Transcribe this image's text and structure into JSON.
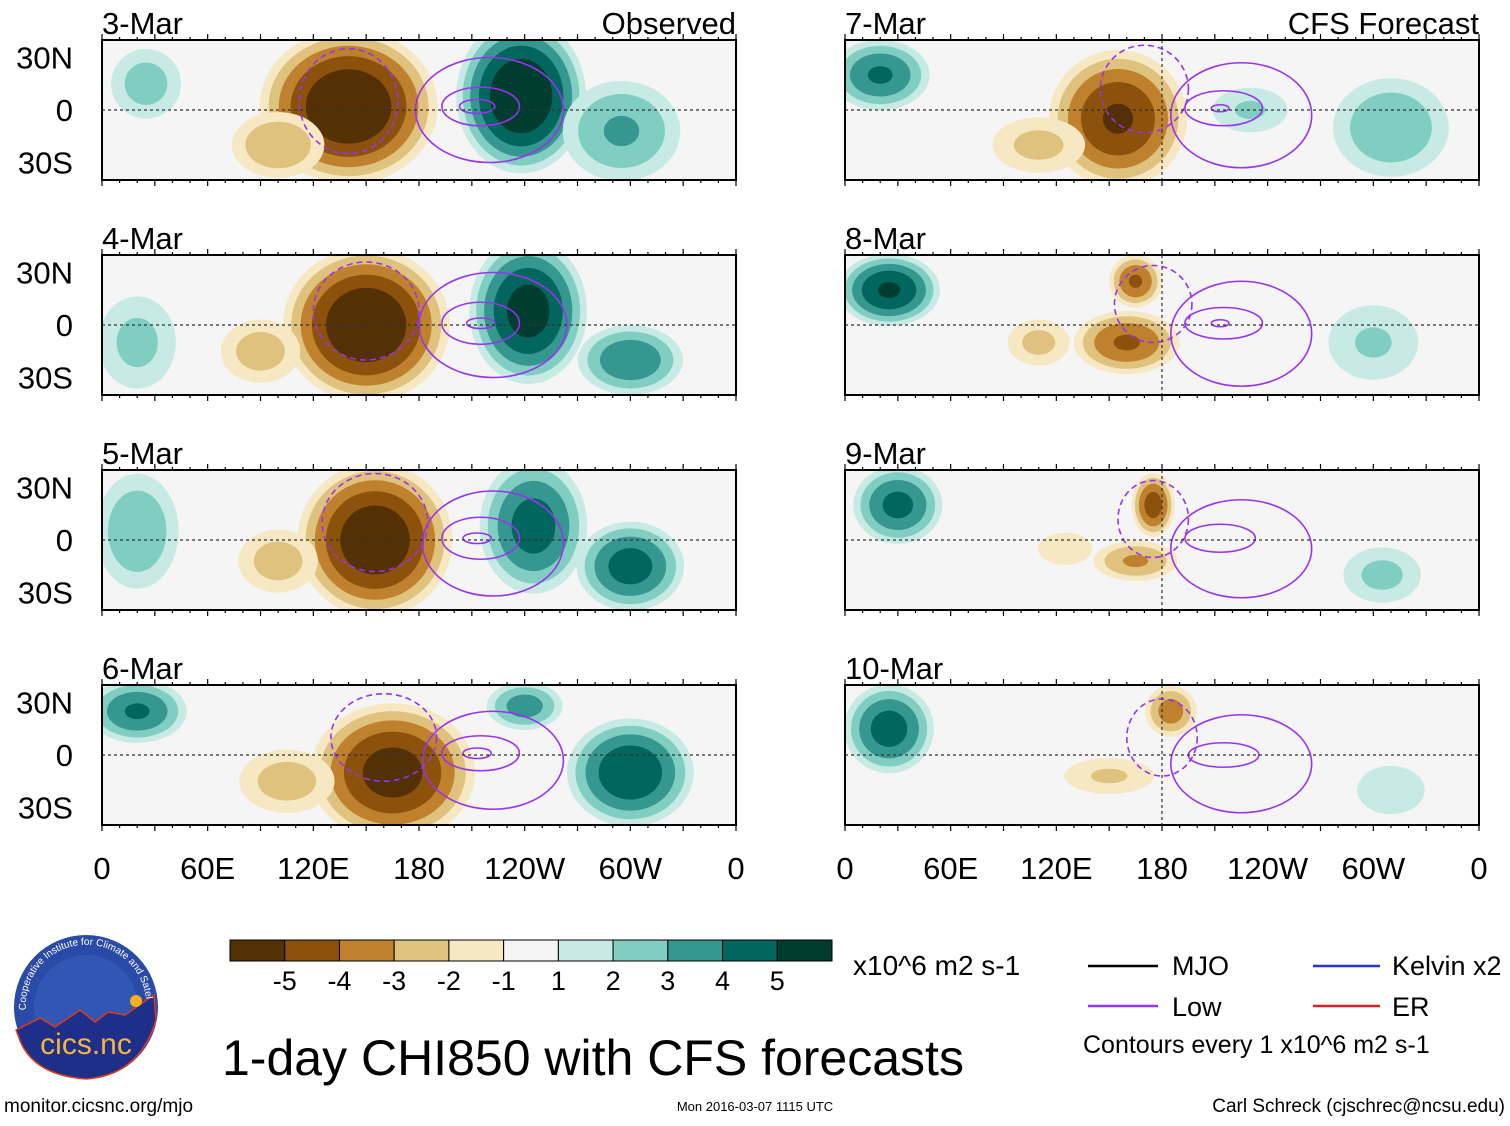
{
  "chart_data": {
    "type": "heatmap",
    "title": "1-day CHI850 with CFS forecasts",
    "units": "x10^6 m2 s-1",
    "x_ticks": [
      "0",
      "60E",
      "120E",
      "180",
      "120W",
      "60W",
      "0"
    ],
    "y_ticks": [
      "30N",
      "0",
      "30S"
    ],
    "lon_range": [
      0,
      360
    ],
    "lat_range": [
      -40,
      40
    ],
    "color_levels": [
      -5,
      -4,
      -3,
      -2,
      -1,
      1,
      2,
      3,
      4,
      5
    ],
    "color_level_labels": [
      "-5",
      "-4",
      "-3",
      "-2",
      "-1",
      "1",
      "2",
      "3",
      "4",
      "5"
    ],
    "colors": [
      "#543005",
      "#8c510a",
      "#bf812d",
      "#dfc27d",
      "#f6e8c3",
      "#f5f5f5",
      "#c7eae5",
      "#80cdc1",
      "#35978f",
      "#01665e",
      "#003c30"
    ],
    "column_headers": {
      "left": "Observed",
      "right": "CFS Forecast"
    },
    "panels": [
      {
        "date": "3-Mar",
        "column": "observed",
        "anomalies": [
          {
            "lon": 25,
            "lat": 15,
            "amp": 2.6,
            "rlon": 22,
            "rlat": 22
          },
          {
            "lon": 140,
            "lat": 2,
            "amp": -6.2,
            "rlon": 48,
            "rlat": 42
          },
          {
            "lon": 100,
            "lat": -20,
            "amp": -3,
            "rlon": 28,
            "rlat": 20
          },
          {
            "lon": 238,
            "lat": 8,
            "amp": 6.2,
            "rlon": 35,
            "rlat": 42
          },
          {
            "lon": 295,
            "lat": -12,
            "amp": 3.2,
            "rlon": 35,
            "rlat": 30
          }
        ],
        "contours": [
          {
            "lon": 213,
            "lat": 2,
            "rlon": 10,
            "rlat": 4,
            "style": "solid"
          },
          {
            "lon": 215,
            "lat": 2,
            "rlon": 22,
            "rlat": 11,
            "style": "solid"
          },
          {
            "lon": 220,
            "lat": 0,
            "rlon": 42,
            "rlat": 30,
            "style": "solid"
          },
          {
            "lon": 140,
            "lat": 5,
            "rlon": 28,
            "rlat": 30,
            "style": "dashed"
          }
        ]
      },
      {
        "date": "4-Mar",
        "column": "observed",
        "anomalies": [
          {
            "lon": 20,
            "lat": -10,
            "amp": 2.4,
            "rlon": 25,
            "rlat": 30
          },
          {
            "lon": 150,
            "lat": 0,
            "amp": -6.2,
            "rlon": 45,
            "rlat": 42
          },
          {
            "lon": 90,
            "lat": -15,
            "amp": -2.6,
            "rlon": 25,
            "rlat": 20
          },
          {
            "lon": 242,
            "lat": 8,
            "amp": 5.6,
            "rlon": 32,
            "rlat": 40
          },
          {
            "lon": 300,
            "lat": -20,
            "amp": 4,
            "rlon": 30,
            "rlat": 20
          }
        ],
        "contours": [
          {
            "lon": 215,
            "lat": 1,
            "rlon": 8,
            "rlat": 3,
            "style": "solid"
          },
          {
            "lon": 215,
            "lat": 1,
            "rlon": 22,
            "rlat": 12,
            "style": "solid"
          },
          {
            "lon": 222,
            "lat": 0,
            "rlon": 42,
            "rlat": 30,
            "style": "solid"
          },
          {
            "lon": 150,
            "lat": 8,
            "rlon": 30,
            "rlat": 28,
            "style": "dashed"
          }
        ]
      },
      {
        "date": "5-Mar",
        "column": "observed",
        "anomalies": [
          {
            "lon": 20,
            "lat": 5,
            "amp": 3,
            "rlon": 25,
            "rlat": 35
          },
          {
            "lon": 155,
            "lat": 0,
            "amp": -6,
            "rlon": 42,
            "rlat": 42
          },
          {
            "lon": 100,
            "lat": -12,
            "amp": -2.6,
            "rlon": 25,
            "rlat": 20
          },
          {
            "lon": 245,
            "lat": 8,
            "amp": 4.6,
            "rlon": 30,
            "rlat": 38
          },
          {
            "lon": 300,
            "lat": -15,
            "amp": 4.6,
            "rlon": 30,
            "rlat": 25
          }
        ],
        "contours": [
          {
            "lon": 213,
            "lat": 1,
            "rlon": 8,
            "rlat": 3,
            "style": "solid"
          },
          {
            "lon": 215,
            "lat": 1,
            "rlon": 22,
            "rlat": 12,
            "style": "solid"
          },
          {
            "lon": 222,
            "lat": -2,
            "rlon": 40,
            "rlat": 30,
            "style": "solid"
          },
          {
            "lon": 155,
            "lat": 10,
            "rlon": 30,
            "rlat": 28,
            "style": "dashed"
          }
        ]
      },
      {
        "date": "6-Mar",
        "column": "observed",
        "anomalies": [
          {
            "lon": 20,
            "lat": 25,
            "amp": 4.2,
            "rlon": 28,
            "rlat": 18
          },
          {
            "lon": 165,
            "lat": -10,
            "amp": -5.6,
            "rlon": 45,
            "rlat": 38
          },
          {
            "lon": 105,
            "lat": -15,
            "amp": -2.6,
            "rlon": 30,
            "rlat": 20
          },
          {
            "lon": 240,
            "lat": 28,
            "amp": 3.6,
            "rlon": 22,
            "rlat": 14
          },
          {
            "lon": 300,
            "lat": -10,
            "amp": 5,
            "rlon": 35,
            "rlat": 30
          }
        ],
        "contours": [
          {
            "lon": 213,
            "lat": 1,
            "rlon": 8,
            "rlat": 3,
            "style": "solid"
          },
          {
            "lon": 215,
            "lat": 1,
            "rlon": 22,
            "rlat": 10,
            "style": "solid"
          },
          {
            "lon": 222,
            "lat": -3,
            "rlon": 40,
            "rlat": 28,
            "style": "solid"
          },
          {
            "lon": 160,
            "lat": 10,
            "rlon": 30,
            "rlat": 25,
            "style": "dashed"
          }
        ]
      },
      {
        "date": "7-Mar",
        "column": "forecast",
        "anomalies": [
          {
            "lon": 20,
            "lat": 20,
            "amp": 4.2,
            "rlon": 28,
            "rlat": 20
          },
          {
            "lon": 155,
            "lat": -5,
            "amp": -5.2,
            "rlon": 38,
            "rlat": 38
          },
          {
            "lon": 110,
            "lat": -20,
            "amp": -2.4,
            "rlon": 30,
            "rlat": 18
          },
          {
            "lon": 230,
            "lat": 0,
            "amp": 2.2,
            "rlon": 25,
            "rlat": 15
          },
          {
            "lon": 310,
            "lat": -10,
            "amp": 3,
            "rlon": 35,
            "rlat": 30
          }
        ],
        "contours": [
          {
            "lon": 213,
            "lat": 1,
            "rlon": 5,
            "rlat": 2,
            "style": "solid"
          },
          {
            "lon": 215,
            "lat": 1,
            "rlon": 22,
            "rlat": 10,
            "style": "solid"
          },
          {
            "lon": 225,
            "lat": -3,
            "rlon": 40,
            "rlat": 30,
            "style": "solid"
          },
          {
            "lon": 170,
            "lat": 12,
            "rlon": 25,
            "rlat": 25,
            "style": "dashed"
          }
        ]
      },
      {
        "date": "8-Mar",
        "column": "forecast",
        "anomalies": [
          {
            "lon": 25,
            "lat": 20,
            "amp": 5.2,
            "rlon": 28,
            "rlat": 20
          },
          {
            "lon": 165,
            "lat": 25,
            "amp": -4.2,
            "rlon": 15,
            "rlat": 15
          },
          {
            "lon": 160,
            "lat": -10,
            "amp": -4.2,
            "rlon": 30,
            "rlat": 18
          },
          {
            "lon": 110,
            "lat": -10,
            "amp": -2.4,
            "rlon": 20,
            "rlat": 15
          },
          {
            "lon": 300,
            "lat": -10,
            "amp": 2.2,
            "rlon": 30,
            "rlat": 25
          }
        ],
        "contours": [
          {
            "lon": 213,
            "lat": 1,
            "rlon": 5,
            "rlat": 2,
            "style": "solid"
          },
          {
            "lon": 215,
            "lat": 1,
            "rlon": 22,
            "rlat": 9,
            "style": "solid"
          },
          {
            "lon": 225,
            "lat": -5,
            "rlon": 40,
            "rlat": 30,
            "style": "solid"
          },
          {
            "lon": 175,
            "lat": 12,
            "rlon": 22,
            "rlat": 22,
            "style": "dashed"
          }
        ]
      },
      {
        "date": "9-Mar",
        "column": "forecast",
        "anomalies": [
          {
            "lon": 30,
            "lat": 20,
            "amp": 4.4,
            "rlon": 25,
            "rlat": 22
          },
          {
            "lon": 175,
            "lat": 20,
            "amp": -4.6,
            "rlon": 12,
            "rlat": 18
          },
          {
            "lon": 165,
            "lat": -12,
            "amp": -3.2,
            "rlon": 25,
            "rlat": 12
          },
          {
            "lon": 125,
            "lat": -5,
            "amp": -1.8,
            "rlon": 20,
            "rlat": 12
          },
          {
            "lon": 305,
            "lat": -20,
            "amp": 2.4,
            "rlon": 25,
            "rlat": 18
          }
        ],
        "contours": [
          {
            "lon": 213,
            "lat": 1,
            "rlon": 20,
            "rlat": 8,
            "style": "solid"
          },
          {
            "lon": 225,
            "lat": -5,
            "rlon": 40,
            "rlat": 28,
            "style": "solid"
          },
          {
            "lon": 175,
            "lat": 12,
            "rlon": 20,
            "rlat": 22,
            "style": "dashed"
          }
        ]
      },
      {
        "date": "10-Mar",
        "column": "forecast",
        "anomalies": [
          {
            "lon": 25,
            "lat": 15,
            "amp": 4.6,
            "rlon": 25,
            "rlat": 25
          },
          {
            "lon": 185,
            "lat": 25,
            "amp": -3.6,
            "rlon": 15,
            "rlat": 15
          },
          {
            "lon": 150,
            "lat": -12,
            "amp": -2.2,
            "rlon": 30,
            "rlat": 12
          },
          {
            "lon": 310,
            "lat": -20,
            "amp": 1.8,
            "rlon": 25,
            "rlat": 18
          }
        ],
        "contours": [
          {
            "lon": 215,
            "lat": 0,
            "rlon": 20,
            "rlat": 7,
            "style": "solid"
          },
          {
            "lon": 225,
            "lat": -5,
            "rlon": 40,
            "rlat": 28,
            "style": "solid"
          },
          {
            "lon": 180,
            "lat": 10,
            "rlon": 20,
            "rlat": 22,
            "style": "dashed"
          }
        ]
      }
    ],
    "legend": {
      "items": [
        {
          "label": "MJO",
          "color": "#000000"
        },
        {
          "label": "Kelvin x2",
          "color": "#2233dd"
        },
        {
          "label": "Low",
          "color": "#9933ee"
        },
        {
          "label": "ER",
          "color": "#dd2222"
        }
      ],
      "note": "Contours every 1 x10^6 m2 s-1"
    }
  },
  "footer": {
    "url": "monitor.cicsnc.org/mjo",
    "timestamp": "Mon 2016-03-07 1115 UTC",
    "author": "Carl Schreck (cjschrec@ncsu.edu)",
    "logo_text": "cics.nc",
    "logo_ring_text": "Cooperative Institute for Climate and Satellites"
  }
}
